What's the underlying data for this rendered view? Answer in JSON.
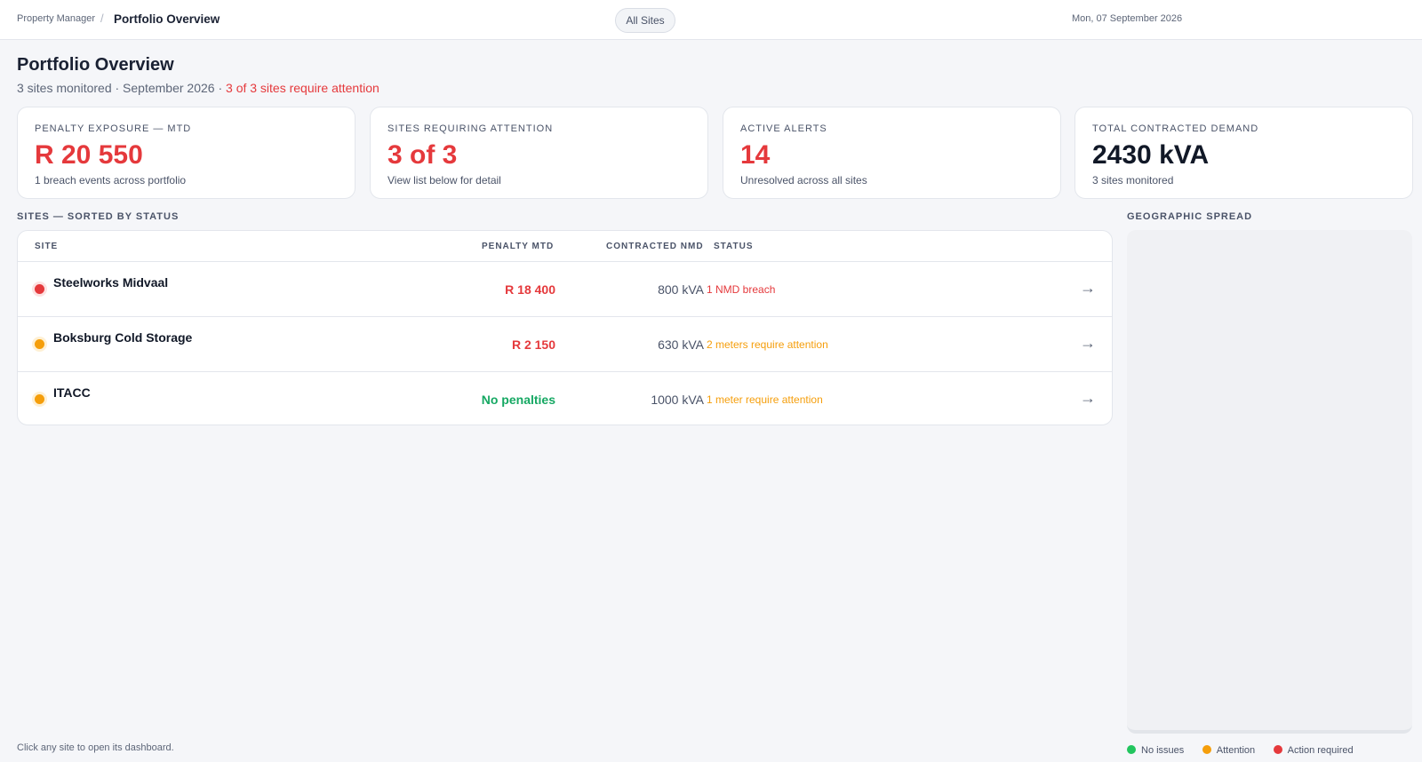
{
  "topbar": {
    "breadcrumb_root": "Property Manager",
    "breadcrumb_separator": "/",
    "breadcrumb_current": "Portfolio Overview",
    "site_filter": "All Sites",
    "date": "Mon, 07 September 2026"
  },
  "header": {
    "title": "Portfolio Overview",
    "subtitle_main": "3 sites monitored · September 2026 · ",
    "subtitle_alert": "3 of 3 sites require attention"
  },
  "kpis": [
    {
      "label": "PENALTY EXPOSURE — MTD",
      "value": "R 20 550",
      "sub": "1 breach events across portfolio",
      "tone": "red"
    },
    {
      "label": "SITES REQUIRING ATTENTION",
      "value": "3 of 3",
      "sub": "View list below for detail",
      "tone": "red"
    },
    {
      "label": "ACTIVE ALERTS",
      "value": "14",
      "sub": "Unresolved across all sites",
      "tone": "red"
    },
    {
      "label": "TOTAL CONTRACTED DEMAND",
      "value": "2430 kVA",
      "sub": "3 sites monitored",
      "tone": "dark"
    }
  ],
  "sites_section": {
    "label": "SITES — SORTED BY STATUS",
    "columns": {
      "site": "SITE",
      "penalty": "PENALTY MTD",
      "nmd": "CONTRACTED NMD",
      "status": "STATUS"
    },
    "rows": [
      {
        "name": "Steelworks Midvaal",
        "penalty": "R 18 400",
        "nmd": "800 kVA",
        "status": "1 NMD breach",
        "level": "red",
        "arrow": "→"
      },
      {
        "name": "Boksburg Cold Storage",
        "penalty": "R 2 150",
        "nmd": "630 kVA",
        "status": "2 meters require attention",
        "level": "amber",
        "arrow": "→"
      },
      {
        "name": "ITACC",
        "penalty": "No penalties",
        "nmd": "1000 kVA",
        "status": "1 meter require attention",
        "level": "amber",
        "arrow": "→"
      }
    ]
  },
  "geo_section": {
    "label": "GEOGRAPHIC SPREAD"
  },
  "footer": {
    "hint": "Click any site to open its dashboard."
  },
  "legend": [
    {
      "label": "No issues",
      "color": "#22c55e"
    },
    {
      "label": "Attention",
      "color": "#f59e0b"
    },
    {
      "label": "Action required",
      "color": "#e5393c"
    }
  ],
  "colors": {
    "red": "#e5393c",
    "amber": "#f59e0b",
    "green": "#16a863"
  }
}
